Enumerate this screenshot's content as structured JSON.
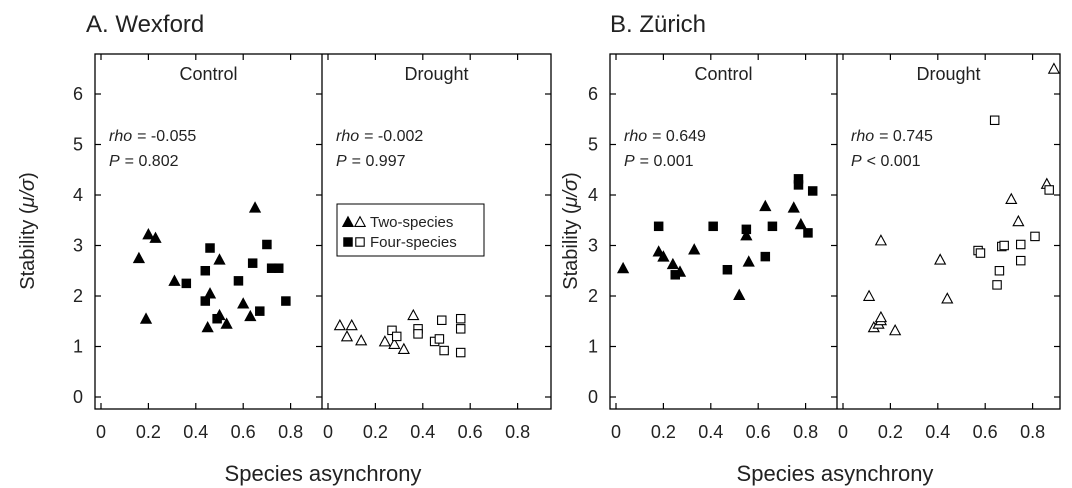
{
  "figure": {
    "ylabel_main": "Stability (",
    "ylabel_symbol": "μ/σ",
    "ylabel_close": ")",
    "legend": {
      "two_species": "Two-species",
      "four_species": "Four-species"
    }
  },
  "chart_data": [
    {
      "type": "scatter",
      "title": "A.  Wexford",
      "xlabel": "Species asynchrony",
      "ylabel": "Stability (μ/σ)",
      "ylim": [
        0,
        6.6
      ],
      "yticks": [
        "0",
        "1",
        "2",
        "3",
        "4",
        "5",
        "6"
      ],
      "xlim": [
        0,
        0.9
      ],
      "xticks": [
        "0",
        "0.2",
        "0.4",
        "0.6",
        "0.8"
      ],
      "panels": [
        {
          "label": "Control",
          "stats": {
            "rho_label": "rho",
            "rho_value": "= -0.055",
            "p_label": "P",
            "p_value": "= 0.802"
          },
          "series": [
            {
              "name": "Two-species",
              "marker": "filled-triangle",
              "points": [
                [
                  0.16,
                  2.75
                ],
                [
                  0.19,
                  1.55
                ],
                [
                  0.2,
                  3.22
                ],
                [
                  0.23,
                  3.15
                ],
                [
                  0.31,
                  2.3
                ],
                [
                  0.45,
                  1.38
                ],
                [
                  0.46,
                  2.05
                ],
                [
                  0.5,
                  1.62
                ],
                [
                  0.5,
                  2.72
                ],
                [
                  0.53,
                  1.45
                ],
                [
                  0.6,
                  1.85
                ],
                [
                  0.63,
                  1.6
                ],
                [
                  0.65,
                  3.75
                ]
              ]
            },
            {
              "name": "Four-species",
              "marker": "filled-square",
              "points": [
                [
                  0.36,
                  2.25
                ],
                [
                  0.44,
                  2.5
                ],
                [
                  0.44,
                  1.9
                ],
                [
                  0.46,
                  2.95
                ],
                [
                  0.49,
                  1.55
                ],
                [
                  0.58,
                  2.3
                ],
                [
                  0.64,
                  2.65
                ],
                [
                  0.67,
                  1.7
                ],
                [
                  0.7,
                  3.02
                ],
                [
                  0.72,
                  2.55
                ],
                [
                  0.75,
                  2.55
                ],
                [
                  0.78,
                  1.9
                ]
              ]
            }
          ]
        },
        {
          "label": "Drought",
          "stats": {
            "rho_label": "rho",
            "rho_value": "= -0.002",
            "p_label": "P",
            "p_value": "= 0.997"
          },
          "series": [
            {
              "name": "Two-species",
              "marker": "open-triangle",
              "points": [
                [
                  0.05,
                  1.42
                ],
                [
                  0.08,
                  1.2
                ],
                [
                  0.1,
                  1.42
                ],
                [
                  0.14,
                  1.12
                ],
                [
                  0.24,
                  1.1
                ],
                [
                  0.28,
                  1.05
                ],
                [
                  0.32,
                  0.95
                ],
                [
                  0.36,
                  1.62
                ]
              ]
            },
            {
              "name": "Four-species",
              "marker": "open-square",
              "points": [
                [
                  0.27,
                  1.32
                ],
                [
                  0.29,
                  1.2
                ],
                [
                  0.38,
                  1.35
                ],
                [
                  0.38,
                  1.25
                ],
                [
                  0.45,
                  1.1
                ],
                [
                  0.47,
                  1.15
                ],
                [
                  0.48,
                  1.52
                ],
                [
                  0.49,
                  0.92
                ],
                [
                  0.56,
                  1.55
                ],
                [
                  0.56,
                  1.35
                ],
                [
                  0.56,
                  0.88
                ]
              ]
            }
          ]
        }
      ]
    },
    {
      "type": "scatter",
      "title": "B.  Zürich",
      "xlabel": "Species asynchrony",
      "ylabel": "Stability (μ/σ)",
      "ylim": [
        0,
        6.6
      ],
      "yticks": [
        "0",
        "1",
        "2",
        "3",
        "4",
        "5",
        "6"
      ],
      "xlim": [
        0,
        0.9
      ],
      "xticks": [
        "0",
        "0.2",
        "0.4",
        "0.6",
        "0.8"
      ],
      "panels": [
        {
          "label": "Control",
          "stats": {
            "rho_label": "rho",
            "rho_value": "= 0.649",
            "p_label": "P",
            "p_value": "= 0.001"
          },
          "series": [
            {
              "name": "Two-species",
              "marker": "filled-triangle",
              "points": [
                [
                  0.03,
                  2.55
                ],
                [
                  0.18,
                  2.88
                ],
                [
                  0.2,
                  2.78
                ],
                [
                  0.24,
                  2.63
                ],
                [
                  0.27,
                  2.48
                ],
                [
                  0.33,
                  2.92
                ],
                [
                  0.52,
                  2.02
                ],
                [
                  0.55,
                  3.2
                ],
                [
                  0.56,
                  2.68
                ],
                [
                  0.63,
                  3.78
                ],
                [
                  0.75,
                  3.75
                ],
                [
                  0.78,
                  3.42
                ]
              ]
            },
            {
              "name": "Four-species",
              "marker": "filled-square",
              "points": [
                [
                  0.18,
                  3.38
                ],
                [
                  0.25,
                  2.42
                ],
                [
                  0.41,
                  3.38
                ],
                [
                  0.47,
                  2.52
                ],
                [
                  0.55,
                  3.32
                ],
                [
                  0.63,
                  2.78
                ],
                [
                  0.66,
                  3.38
                ],
                [
                  0.77,
                  4.32
                ],
                [
                  0.77,
                  4.2
                ],
                [
                  0.81,
                  3.25
                ],
                [
                  0.83,
                  4.08
                ]
              ]
            }
          ]
        },
        {
          "label": "Drought",
          "stats": {
            "rho_label": "rho",
            "rho_value": "= 0.745",
            "p_label": "P",
            "p_value": "< 0.001"
          },
          "series": [
            {
              "name": "Two-species",
              "marker": "open-triangle",
              "points": [
                [
                  0.11,
                  2.0
                ],
                [
                  0.13,
                  1.38
                ],
                [
                  0.15,
                  1.45
                ],
                [
                  0.16,
                  1.52
                ],
                [
                  0.16,
                  1.58
                ],
                [
                  0.16,
                  3.1
                ],
                [
                  0.22,
                  1.32
                ],
                [
                  0.41,
                  2.72
                ],
                [
                  0.44,
                  1.95
                ],
                [
                  0.71,
                  3.92
                ],
                [
                  0.74,
                  3.48
                ],
                [
                  0.86,
                  4.22
                ],
                [
                  0.89,
                  6.5
                ]
              ]
            },
            {
              "name": "Four-species",
              "marker": "open-square",
              "points": [
                [
                  0.57,
                  2.9
                ],
                [
                  0.58,
                  2.85
                ],
                [
                  0.64,
                  5.48
                ],
                [
                  0.65,
                  2.22
                ],
                [
                  0.66,
                  2.5
                ],
                [
                  0.67,
                  2.98
                ],
                [
                  0.68,
                  3.0
                ],
                [
                  0.75,
                  3.02
                ],
                [
                  0.75,
                  2.7
                ],
                [
                  0.81,
                  3.18
                ],
                [
                  0.87,
                  4.1
                ]
              ]
            }
          ]
        }
      ]
    }
  ]
}
